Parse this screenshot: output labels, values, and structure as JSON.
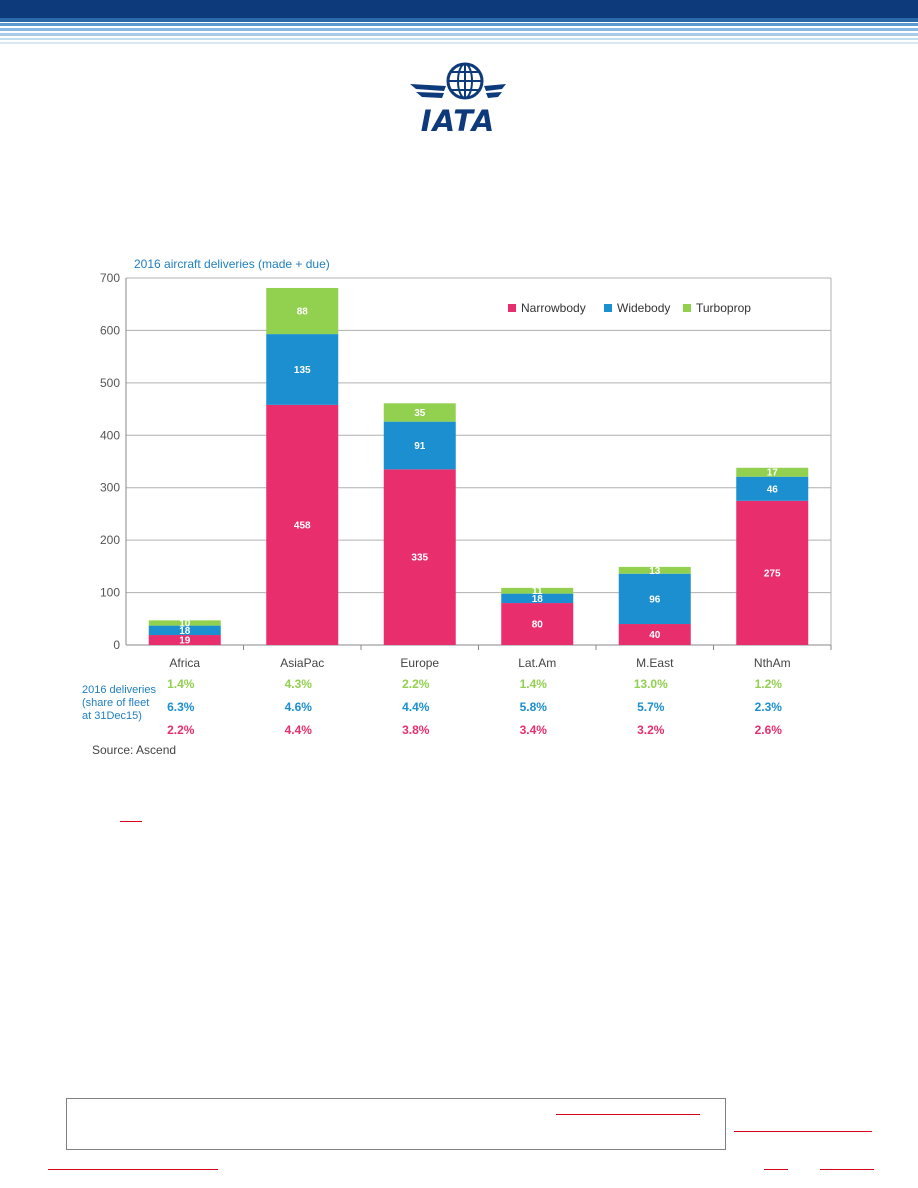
{
  "chart_data": {
    "type": "bar",
    "stacked": true,
    "title": "2016 aircraft deliveries (made + due)",
    "categories": [
      "Africa",
      "AsiaPac",
      "Europe",
      "Lat.Am",
      "M.East",
      "NthAm"
    ],
    "series": [
      {
        "name": "Narrowbody",
        "color": "#e92e6e",
        "values": [
          19,
          458,
          335,
          80,
          40,
          275
        ]
      },
      {
        "name": "Widebody",
        "color": "#1b8fd0",
        "values": [
          18,
          135,
          91,
          18,
          96,
          46
        ]
      },
      {
        "name": "Turboprop",
        "color": "#92d050",
        "values": [
          10,
          88,
          35,
          11,
          13,
          17
        ]
      }
    ],
    "ylim": [
      0,
      700
    ],
    "yticks": [
      0,
      100,
      200,
      300,
      400,
      500,
      600,
      700
    ],
    "grid": true,
    "legend": "top-right",
    "share_table": {
      "label_lines": [
        "2016 deliveries",
        "(share of fleet",
        "at 31Dec15)"
      ],
      "rows": [
        {
          "series": "Turboprop",
          "color": "#92d050",
          "values": [
            "1.4%",
            "4.3%",
            "2.2%",
            "1.4%",
            "13.0%",
            "1.2%"
          ]
        },
        {
          "series": "Widebody",
          "color": "#1b8fd0",
          "values": [
            "6.3%",
            "4.6%",
            "4.4%",
            "5.8%",
            "5.7%",
            "2.3%"
          ]
        },
        {
          "series": "Narrowbody",
          "color": "#e92e6e",
          "values": [
            "2.2%",
            "4.4%",
            "3.8%",
            "3.4%",
            "3.2%",
            "2.6%"
          ]
        }
      ]
    },
    "source": "Source: Ascend"
  },
  "logo": {
    "text": "IATA",
    "color": "#0d3a7a"
  },
  "colors": {
    "header": "#0d3a7a",
    "header_light": "#9cc8ea",
    "link_red": "#d9001b"
  }
}
